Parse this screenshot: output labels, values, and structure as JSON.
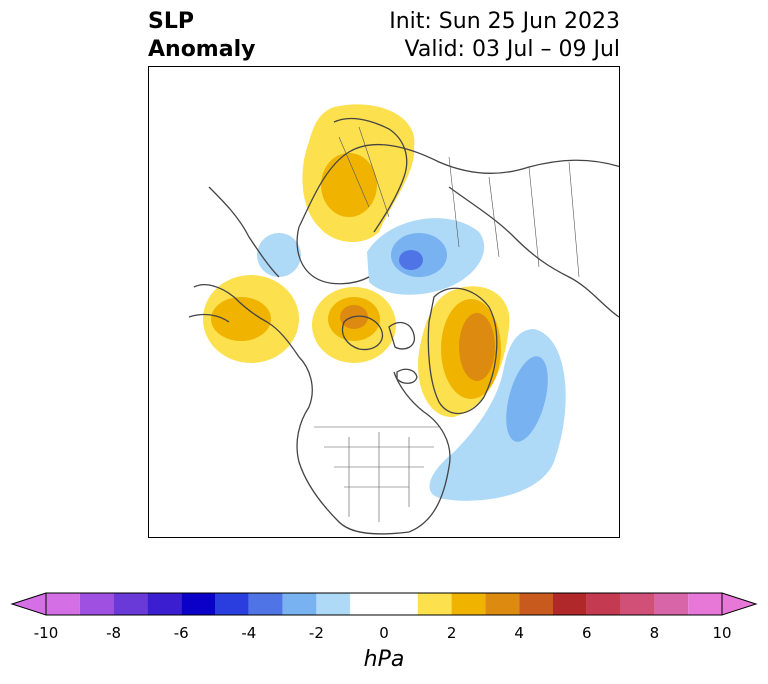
{
  "title": {
    "left_line1": "SLP",
    "left_line2": "Anomaly",
    "right_line1": "Init: Sun 25 Jun 2023",
    "right_line2": "Valid: 03 Jul – 09 Jul"
  },
  "colorbar": {
    "unit": "hPa",
    "ticks": [
      "-10",
      "-8",
      "-6",
      "-4",
      "-2",
      "0",
      "2",
      "4",
      "6",
      "8",
      "10"
    ],
    "bins": [
      {
        "range": [
          -10,
          -9
        ],
        "color": "#d46fe6"
      },
      {
        "range": [
          -9,
          -8
        ],
        "color": "#a050e0"
      },
      {
        "range": [
          -8,
          -7
        ],
        "color": "#6a3ad8"
      },
      {
        "range": [
          -7,
          -6
        ],
        "color": "#3a1ed0"
      },
      {
        "range": [
          -6,
          -5
        ],
        "color": "#0a00c8"
      },
      {
        "range": [
          -5,
          -4
        ],
        "color": "#2a3ee0"
      },
      {
        "range": [
          -4,
          -3
        ],
        "color": "#4f74e6"
      },
      {
        "range": [
          -3,
          -2
        ],
        "color": "#78b2f0"
      },
      {
        "range": [
          -2,
          -1
        ],
        "color": "#aedaf8"
      },
      {
        "range": [
          -1,
          1
        ],
        "color": "#ffffff"
      },
      {
        "range": [
          1,
          2
        ],
        "color": "#fce04e"
      },
      {
        "range": [
          2,
          3
        ],
        "color": "#f0b400"
      },
      {
        "range": [
          3,
          4
        ],
        "color": "#dc8a10"
      },
      {
        "range": [
          4,
          5
        ],
        "color": "#c85a1e"
      },
      {
        "range": [
          5,
          6
        ],
        "color": "#b0282a"
      },
      {
        "range": [
          6,
          7
        ],
        "color": "#c43a50"
      },
      {
        "range": [
          7,
          8
        ],
        "color": "#d05078"
      },
      {
        "range": [
          8,
          9
        ],
        "color": "#d865a8"
      },
      {
        "range": [
          9,
          10
        ],
        "color": "#e878d8"
      }
    ],
    "extend": "both",
    "under_color": "#d46fe6",
    "over_color": "#e878d8"
  },
  "map": {
    "projection": "polar stereographic, North America / Arctic",
    "features": [
      {
        "name": "positive anomaly over Scandinavia / Barents",
        "peak": "+3"
      },
      {
        "name": "negative anomaly over Kara / Laptev Sea",
        "peak": "-4"
      },
      {
        "name": "positive anomaly over Gulf of Alaska",
        "peak": "+3"
      },
      {
        "name": "positive anomaly over Canadian Arctic / Baffin",
        "peak": "+4"
      },
      {
        "name": "positive anomaly over Greenland / Davis Strait",
        "peak": "+4"
      },
      {
        "name": "negative anomaly over North Atlantic",
        "peak": "-3"
      },
      {
        "name": "negative anomaly over Bering / Chukchi",
        "peak": "-2"
      }
    ]
  }
}
